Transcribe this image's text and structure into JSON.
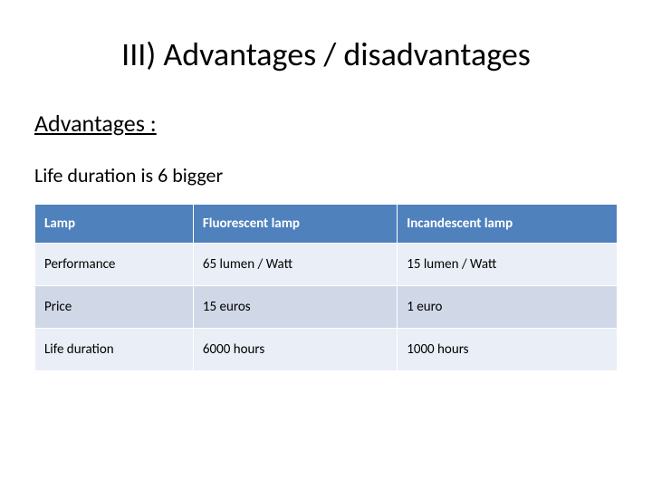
{
  "title": "III) Advantages / disadvantages",
  "subtitle": "Advantages :",
  "lead": "Life duration is 6 bigger",
  "table": {
    "type": "table",
    "header_bg": "#4f81bd",
    "header_fg": "#ffffff",
    "row_odd_bg": "#e9eef7",
    "row_even_bg": "#d0d8e8",
    "border_color": "#ffffff",
    "font_size_pt": 11,
    "columns": [
      "Lamp",
      "Fluorescent lamp",
      "Incandescent lamp"
    ],
    "rows": [
      [
        "Performance",
        "65 lumen / Watt",
        "15 lumen / Watt"
      ],
      [
        "Price",
        "15 euros",
        "1 euro"
      ],
      [
        "Life duration",
        "6000 hours",
        "1000 hours"
      ]
    ]
  }
}
